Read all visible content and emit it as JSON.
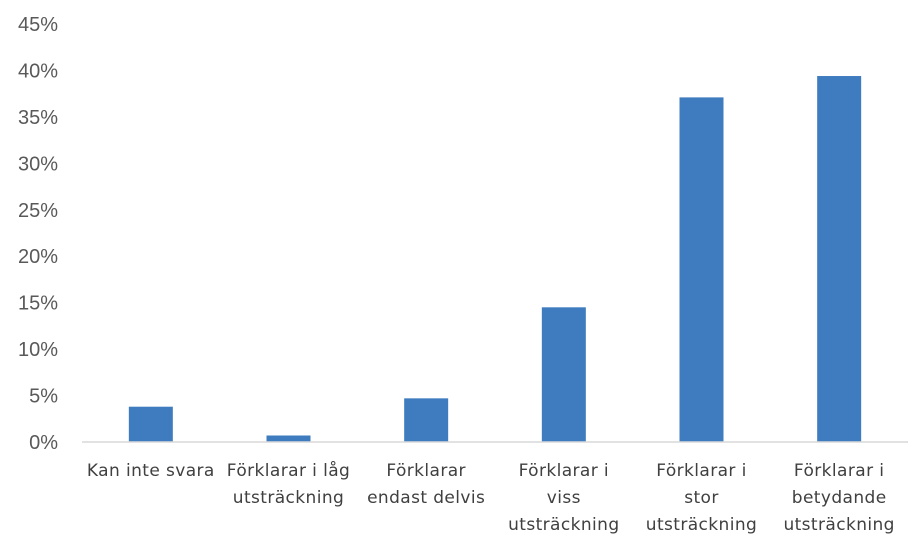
{
  "chart_data": {
    "type": "bar",
    "categories": [
      [
        "Kan inte svara"
      ],
      [
        "Förklarar i låg",
        "utsträckning"
      ],
      [
        "Förklarar",
        "endast delvis"
      ],
      [
        "Förklarar i",
        "viss",
        "utsträckning"
      ],
      [
        "Förklarar i",
        "stor",
        "utsträckning"
      ],
      [
        "Förklarar i",
        "betydande",
        "utsträckning"
      ]
    ],
    "values": [
      3.8,
      0.7,
      4.7,
      14.5,
      37.1,
      39.4
    ],
    "y_ticks": [
      "0%",
      "5%",
      "10%",
      "15%",
      "20%",
      "25%",
      "30%",
      "35%",
      "40%",
      "45%"
    ],
    "ylim": [
      0,
      45
    ],
    "grid": false,
    "bar_color": "#3F7CBF",
    "axis_color": "#D9D9D9"
  }
}
